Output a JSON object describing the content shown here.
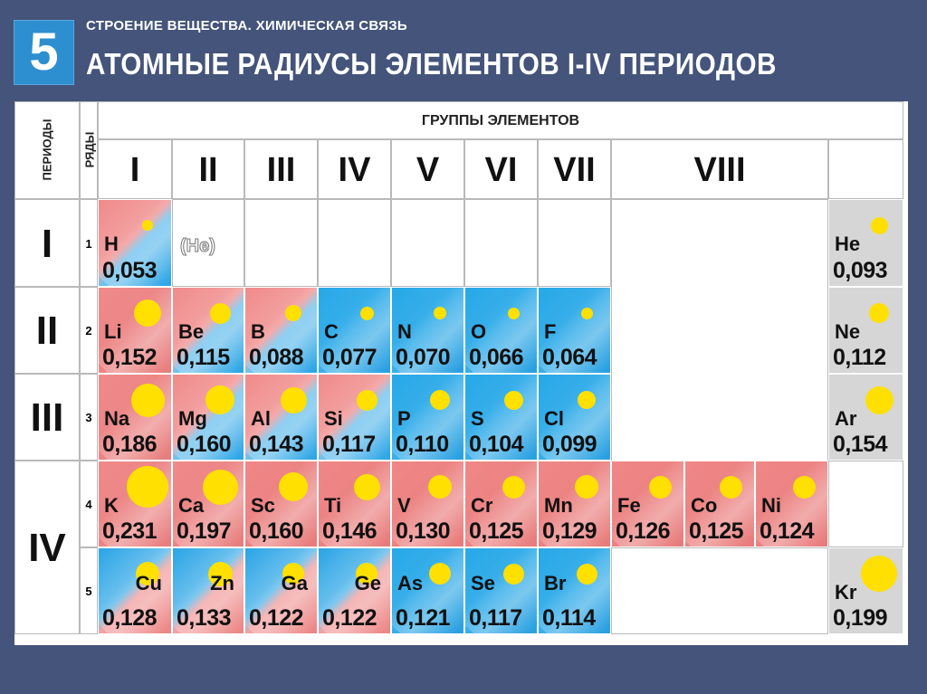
{
  "header": {
    "number": "5",
    "subtitle": "СТРОЕНИЕ ВЕЩЕСТВА. ХИМИЧЕСКАЯ СВЯЗЬ",
    "title": "АТОМНЫЕ РАДИУСЫ ЭЛЕМЕНТОВ I-IV ПЕРИОДОВ"
  },
  "table": {
    "periods_label": "ПЕРИОДЫ",
    "rows_label": "РЯДЫ",
    "groups_label": "ГРУППЫ ЭЛЕМЕНТОВ",
    "groups": [
      "I",
      "II",
      "III",
      "IV",
      "V",
      "VI",
      "VII",
      "VIII"
    ],
    "periods": [
      "I",
      "II",
      "III",
      "IV"
    ],
    "rows": [
      "1",
      "2",
      "3",
      "4",
      "5"
    ],
    "helium_placeholder": "(He)"
  },
  "elements": [
    {
      "symbol": "H",
      "radius": "0,053"
    },
    {
      "symbol": "Li",
      "radius": "0,152"
    },
    {
      "symbol": "Be",
      "radius": "0,115"
    },
    {
      "symbol": "B",
      "radius": "0,088"
    },
    {
      "symbol": "C",
      "radius": "0,077"
    },
    {
      "symbol": "N",
      "radius": "0,070"
    },
    {
      "symbol": "O",
      "radius": "0,066"
    },
    {
      "symbol": "F",
      "radius": "0,064"
    },
    {
      "symbol": "Na",
      "radius": "0,186"
    },
    {
      "symbol": "Mg",
      "radius": "0,160"
    },
    {
      "symbol": "Al",
      "radius": "0,143"
    },
    {
      "symbol": "Si",
      "radius": "0,117"
    },
    {
      "symbol": "P",
      "radius": "0,110"
    },
    {
      "symbol": "S",
      "radius": "0,104"
    },
    {
      "symbol": "Cl",
      "radius": "0,099"
    },
    {
      "symbol": "K",
      "radius": "0,231"
    },
    {
      "symbol": "Ca",
      "radius": "0,197"
    },
    {
      "symbol": "Sc",
      "radius": "0,160"
    },
    {
      "symbol": "Ti",
      "radius": "0,146"
    },
    {
      "symbol": "V",
      "radius": "0,130"
    },
    {
      "symbol": "Cr",
      "radius": "0,125"
    },
    {
      "symbol": "Mn",
      "radius": "0,129"
    },
    {
      "symbol": "Fe",
      "radius": "0,126"
    },
    {
      "symbol": "Co",
      "radius": "0,125"
    },
    {
      "symbol": "Ni",
      "radius": "0,124"
    },
    {
      "symbol": "Cu",
      "radius": "0,128"
    },
    {
      "symbol": "Zn",
      "radius": "0,133"
    },
    {
      "symbol": "Ga",
      "radius": "0,122"
    },
    {
      "symbol": "Ge",
      "radius": "0,122"
    },
    {
      "symbol": "As",
      "radius": "0,121"
    },
    {
      "symbol": "Se",
      "radius": "0,117"
    },
    {
      "symbol": "Br",
      "radius": "0,114"
    },
    {
      "symbol": "He",
      "radius": "0,093"
    },
    {
      "symbol": "Ne",
      "radius": "0,112"
    },
    {
      "symbol": "Ar",
      "radius": "0,154"
    },
    {
      "symbol": "Kr",
      "radius": "0,199"
    }
  ]
}
